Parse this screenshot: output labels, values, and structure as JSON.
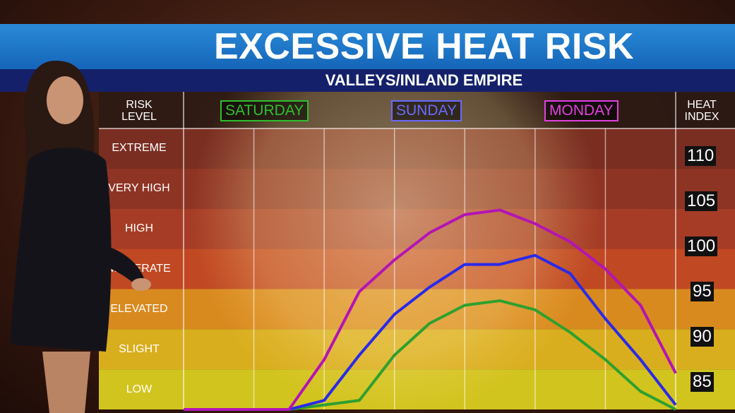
{
  "title": "EXCESSIVE HEAT RISK",
  "subtitle": "VALLEYS/INLAND EMPIRE",
  "headers": {
    "risk_level": [
      "RISK",
      "LEVEL"
    ],
    "heat_index": [
      "HEAT",
      "INDEX"
    ]
  },
  "days": [
    {
      "label": "SATURDAY",
      "color": "#2a9a2a"
    },
    {
      "label": "SUNDAY",
      "color": "#3a3ad8"
    },
    {
      "label": "MONDAY",
      "color": "#c020c0"
    }
  ],
  "risk_levels": [
    "EXTREME",
    "VERY HIGH",
    "HIGH",
    "MODERATE",
    "ELEVATED",
    "SLIGHT",
    "LOW"
  ],
  "band_colors": [
    "#7a2e22",
    "#8e3424",
    "#a63c26",
    "#c04822",
    "#d98a1e",
    "#d9ae1e",
    "#d2c41e"
  ],
  "heat_index_labels": [
    "110",
    "105",
    "100",
    "95",
    "90",
    "85"
  ],
  "chart_data": {
    "type": "line",
    "x": [
      0,
      1,
      2,
      3,
      4,
      5,
      6,
      7,
      8,
      9,
      10,
      11,
      12,
      13,
      14
    ],
    "ylim": [
      82,
      113
    ],
    "series": [
      {
        "name": "SATURDAY",
        "color": "#2ea02e",
        "values": [
          82,
          82,
          82,
          82,
          82.5,
          83,
          88,
          91.5,
          93.5,
          94,
          93,
          90.5,
          87.5,
          84,
          82
        ]
      },
      {
        "name": "SUNDAY",
        "color": "#2a2ae8",
        "values": [
          82,
          82,
          82,
          82,
          83,
          88,
          92.5,
          95.5,
          98,
          98,
          99,
          97,
          92,
          87.5,
          82.5
        ]
      },
      {
        "name": "MONDAY",
        "color": "#b414b4",
        "values": [
          82,
          82,
          82,
          82,
          87.5,
          95,
          98.5,
          101.5,
          103.5,
          104,
          102.5,
          100.5,
          97.5,
          93.5,
          86
        ]
      }
    ]
  }
}
